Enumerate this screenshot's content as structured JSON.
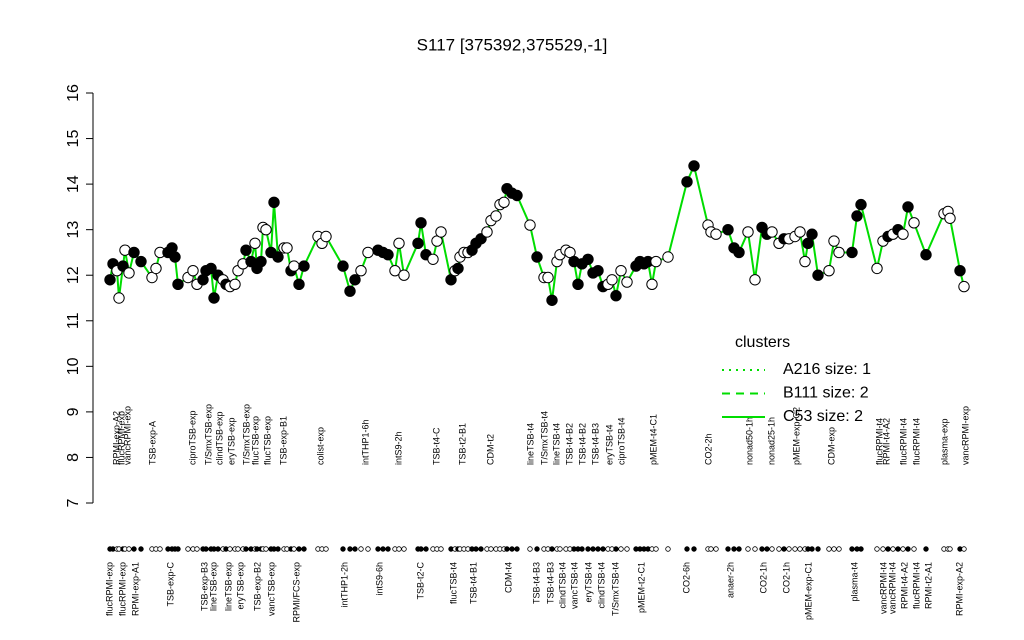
{
  "chart_data": {
    "type": "line-scatter",
    "title": "S117 [375392,375529,-1]",
    "ylim": [
      7,
      16
    ],
    "yticks": [
      7,
      8,
      9,
      10,
      11,
      12,
      13,
      14,
      15,
      16
    ],
    "xlim": [
      0,
      870
    ],
    "line_color": "#00dd00",
    "x": [
      10,
      13,
      17,
      19,
      23,
      25,
      29,
      34,
      41,
      52,
      56,
      60,
      68,
      72,
      75,
      78,
      88,
      93,
      97,
      103,
      106,
      111,
      114,
      118,
      123,
      126,
      130,
      135,
      138,
      143,
      146,
      151,
      155,
      157,
      161,
      163,
      166,
      171,
      174,
      178,
      184,
      187,
      191,
      194,
      199,
      204,
      218,
      222,
      226,
      243,
      250,
      255,
      261,
      268,
      278,
      283,
      288,
      295,
      299,
      304,
      318,
      321,
      326,
      333,
      337,
      341,
      351,
      355,
      358,
      360,
      364,
      368,
      372,
      376,
      381,
      387,
      391,
      396,
      400,
      404,
      407,
      412,
      417,
      430,
      437,
      444,
      448,
      452,
      457,
      460,
      466,
      470,
      474,
      478,
      482,
      488,
      493,
      498,
      503,
      508,
      512,
      516,
      521,
      527,
      536,
      540,
      544,
      548,
      552,
      556,
      568,
      587,
      594,
      608,
      611,
      616,
      628,
      634,
      639,
      648,
      655,
      662,
      667,
      672,
      679,
      684,
      689,
      695,
      700,
      705,
      708,
      712,
      718,
      729,
      734,
      739,
      752,
      757,
      761,
      777,
      783,
      788,
      793,
      798,
      803,
      808,
      814,
      826,
      844,
      848,
      850,
      860,
      864
    ],
    "values": [
      11.9,
      12.25,
      12.1,
      11.5,
      12.2,
      12.55,
      12.05,
      12.5,
      12.3,
      11.95,
      12.15,
      12.5,
      12.5,
      12.6,
      12.4,
      11.8,
      11.95,
      12.1,
      11.8,
      11.9,
      12.1,
      12.15,
      11.5,
      12.0,
      11.9,
      11.8,
      11.75,
      11.8,
      12.1,
      12.25,
      12.55,
      12.3,
      12.7,
      12.15,
      12.3,
      13.05,
      13.0,
      12.5,
      13.6,
      12.4,
      12.6,
      12.6,
      12.1,
      12.2,
      11.8,
      12.2,
      12.85,
      12.7,
      12.85,
      12.2,
      11.65,
      11.9,
      12.1,
      12.5,
      12.55,
      12.5,
      12.45,
      12.1,
      12.7,
      12.0,
      12.7,
      13.15,
      12.45,
      12.35,
      12.75,
      12.95,
      11.9,
      12.1,
      12.15,
      12.4,
      12.5,
      12.5,
      12.55,
      12.7,
      12.8,
      12.95,
      13.2,
      13.3,
      13.55,
      13.6,
      13.9,
      13.8,
      13.75,
      13.1,
      12.4,
      11.95,
      11.95,
      11.45,
      12.3,
      12.45,
      12.55,
      12.5,
      12.3,
      11.8,
      12.25,
      12.35,
      12.05,
      12.1,
      11.75,
      11.8,
      11.9,
      11.55,
      12.1,
      11.85,
      12.2,
      12.3,
      12.25,
      12.3,
      11.8,
      12.3,
      12.4,
      14.05,
      14.4,
      13.1,
      12.95,
      12.9,
      13.0,
      12.6,
      12.5,
      12.95,
      11.9,
      13.05,
      12.9,
      12.95,
      12.7,
      12.8,
      12.8,
      12.85,
      12.95,
      12.3,
      12.7,
      12.9,
      12.0,
      12.1,
      12.75,
      12.5,
      12.5,
      13.3,
      13.55,
      12.15,
      12.75,
      12.85,
      12.9,
      13.0,
      12.9,
      13.5,
      13.15,
      12.45,
      13.35,
      13.4,
      13.25,
      12.1,
      11.75
    ],
    "point_colors": [
      "black",
      "black",
      "white",
      "white",
      "black",
      "white",
      "white",
      "black",
      "black",
      "white",
      "white",
      "white",
      "black",
      "black",
      "black",
      "black",
      "white",
      "white",
      "white",
      "black",
      "black",
      "black",
      "black",
      "black",
      "white",
      "black",
      "white",
      "white",
      "white",
      "white",
      "black",
      "black",
      "white",
      "black",
      "black",
      "white",
      "white",
      "black",
      "black",
      "black",
      "white",
      "white",
      "black",
      "white",
      "black",
      "black",
      "white",
      "white",
      "white",
      "black",
      "black",
      "black",
      "white",
      "white",
      "black",
      "black",
      "black",
      "white",
      "white",
      "white",
      "black",
      "black",
      "black",
      "white",
      "white",
      "white",
      "black",
      "white",
      "black",
      "white",
      "white",
      "white",
      "black",
      "black",
      "black",
      "white",
      "white",
      "white",
      "white",
      "white",
      "black",
      "black",
      "black",
      "white",
      "black",
      "white",
      "white",
      "black",
      "white",
      "white",
      "white",
      "white",
      "black",
      "black",
      "black",
      "black",
      "black",
      "black",
      "black",
      "white",
      "white",
      "black",
      "white",
      "white",
      "black",
      "black",
      "black",
      "black",
      "white",
      "white",
      "white",
      "black",
      "black",
      "white",
      "white",
      "white",
      "black",
      "black",
      "black",
      "white",
      "white",
      "black",
      "black",
      "white",
      "white",
      "black",
      "white",
      "white",
      "white",
      "white",
      "black",
      "black",
      "black",
      "white",
      "white",
      "white",
      "black",
      "black",
      "black",
      "white",
      "white",
      "black",
      "white",
      "black",
      "white",
      "black",
      "white",
      "black",
      "white",
      "white",
      "white",
      "black",
      "white"
    ],
    "upper_labels": {
      "labels": [
        "RPMI-exp-A2",
        "flucRPMI-exp",
        "vancRPMI-exp",
        "TSB-exp-A",
        "ciproTSB-exp",
        "T/SmxTSB-exp",
        "clindTSB-exp",
        "eryTSB-exp",
        "T/SmxTSB-exp",
        "flucTSB-exp",
        "flucTSB-exp",
        "TSB-exp-B1",
        "colist-exp",
        "intTHP1-6h",
        "intS9-2h",
        "TSB-t4-C",
        "TSB-t2-B1",
        "CDM-t2",
        "lineTSB-t4",
        "T/SmxTSB-t4",
        "lineTSB-t4",
        "TSB-t4-B2",
        "TSB-t4-B2",
        "TSB-t4-B3",
        "eryTSB-t4",
        "ciproTSB-t4",
        "pMEM-t4-C1",
        "CO2-2h",
        "nonad50-1h",
        "nonad25-1h",
        "pMEM-exp-C2",
        "CDM-exp",
        "flucRPMI-t4",
        "RPMI-t4-A2",
        "flucRPMI-t4",
        "flucRPMI-t4",
        "plasma-exp",
        "vancRPMI-exp"
      ],
      "x": [
        17,
        22,
        28,
        53,
        93,
        109,
        120,
        132,
        147,
        156,
        168,
        184,
        221,
        266,
        299,
        337,
        363,
        391,
        431,
        445,
        457,
        470,
        483,
        496,
        510,
        522,
        554,
        609,
        650,
        672,
        697,
        732,
        780,
        787,
        804,
        817,
        845,
        866
      ]
    },
    "lower_labels": {
      "labels": [
        "flucRPMI-exp",
        "flucRPMI-exp",
        "RPMI-exp-A1",
        "TSB-exp-C",
        "TSB-exp-B3",
        "lineTSB-exp",
        "lineTSB-exp",
        "eryTSB-exp",
        "TSB-exp-B2",
        "vancTSB-exp",
        "RPMI/FCS-exp",
        "intTHP1-2h",
        "intS9-6h",
        "TSB-t2-C",
        "flucTSB-t4",
        "TSB-t4-B1",
        "CDM-t4",
        "TSB-t4-B3",
        "TSB-t4-B3",
        "clindTSB-t4",
        "vancTSB-t4",
        "eryTSB-t4",
        "clindTSB-t4",
        "T/SmxTSB-t4",
        "pMEM-t2-C1",
        "CO2-6h",
        "anaer-2h",
        "CO2-1h",
        "CO2-1h",
        "pMEM-exp-C1",
        "plasma-t4",
        "vancRPMI-t4",
        "vancRPMI-t4",
        "RPMI-t4-A2",
        "flucRPMI-t4",
        "RPMI-t2-A1",
        "RPMI-exp-A2"
      ],
      "x": [
        10,
        23,
        36,
        71,
        105,
        114,
        129,
        141,
        158,
        172,
        197,
        245,
        280,
        321,
        354,
        374,
        409,
        437,
        451,
        463,
        475,
        489,
        502,
        516,
        542,
        587,
        631,
        664,
        687,
        709,
        755,
        784,
        793,
        805,
        817,
        829,
        860
      ]
    },
    "legend": {
      "title": "clusters",
      "entries": [
        {
          "name": "A216 size: 1",
          "dash": "2,5"
        },
        {
          "name": "B111 size: 2",
          "dash": "8,6"
        },
        {
          "name": "C53 size: 2",
          "dash": "none"
        }
      ]
    }
  }
}
